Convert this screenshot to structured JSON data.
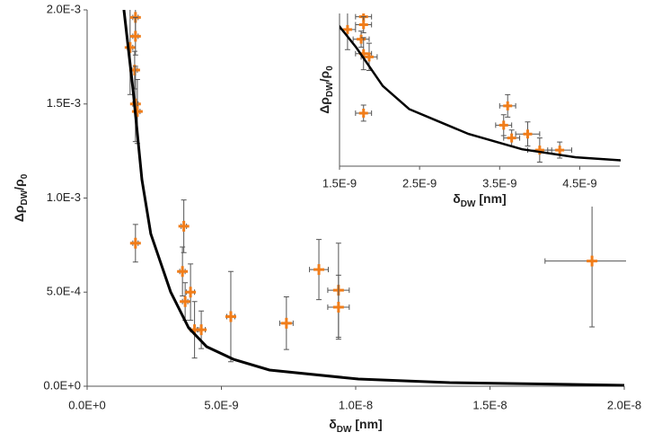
{
  "chart_data": [
    {
      "type": "scatter",
      "xlabel": [
        "δ",
        "DW",
        " [nm]"
      ],
      "ylabel": [
        "Δρ",
        "DW",
        "/ρ",
        "0"
      ],
      "xlim": [
        0,
        2e-08
      ],
      "ylim": [
        0,
        0.002
      ],
      "xticks": [
        {
          "value": 0,
          "label": "0.0E+0"
        },
        {
          "value": 5e-09,
          "label": "5.0E-9"
        },
        {
          "value": 1e-08,
          "label": "1.0E-8"
        },
        {
          "value": 1.5e-08,
          "label": "1.5E-8"
        },
        {
          "value": 2e-08,
          "label": "2.0E-8"
        }
      ],
      "yticks": [
        {
          "value": 0,
          "label": "0.0E+0"
        },
        {
          "value": 0.0005,
          "label": "5.0E-4"
        },
        {
          "value": 0.001,
          "label": "1.0E-3"
        },
        {
          "value": 0.0015,
          "label": "1.5E-3"
        },
        {
          "value": 0.002,
          "label": "2.0E-3"
        }
      ],
      "series": [
        {
          "type": "scatter",
          "color": "#f07d1a",
          "errcolor": "#555555",
          "x": [
            1.6e-09,
            1.8e-09,
            1.8e-09,
            1.77e-09,
            1.8e-09,
            1.87e-09,
            1.8e-09,
            3.6e-09,
            3.55e-09,
            3.65e-09,
            3.85e-09,
            4e-09,
            4.25e-09,
            5.35e-09,
            7.42e-09,
            8.63e-09,
            9.36e-09,
            9.36e-09,
            1.88e-08
          ],
          "values": [
            0.0018,
            0.00196,
            0.00186,
            0.00168,
            0.0015,
            0.00146,
            0.00076,
            0.00085,
            0.00061,
            0.00045,
            0.0005,
            0.0003,
            0.0003,
            0.00037,
            0.000335,
            0.00062,
            0.00051,
            0.00042,
            0.000665
          ],
          "yerr": [
            0.00025,
            0.0001,
            0.0001,
            0.0001,
            0.0002,
            0.00017,
            0.0001,
            0.00014,
            0.00013,
            0.0001,
            0.00015,
            0.00015,
            0.0001,
            0.00024,
            0.00014,
            0.00016,
            0.00025,
            0.00017,
            0.00035
          ],
          "xerr": [
            1e-10,
            1e-10,
            1e-10,
            1e-10,
            1e-10,
            1e-10,
            1e-10,
            1e-10,
            1e-10,
            1e-10,
            1.5e-10,
            1.5e-10,
            1.5e-10,
            1.5e-10,
            2.5e-10,
            3.5e-10,
            4e-10,
            4e-10,
            1.75e-09
          ]
        },
        {
          "type": "line",
          "color": "#000000",
          "x": [
            1.37e-09,
            1.71e-09,
            2.04e-09,
            2.37e-09,
            2.71e-09,
            3.11e-09,
            3.78e-09,
            4.45e-09,
            5.45e-09,
            6.79e-09,
            1.01e-08,
            1.35e-08,
            2e-08
          ],
          "values": [
            0.002,
            0.001575,
            0.001098,
            0.00081,
            0.000668,
            0.000501,
            0.00031,
            0.00021,
            0.000143,
            8.6e-05,
            3.8e-05,
            1.9e-05,
            5e-06
          ]
        }
      ]
    },
    {
      "type": "inset",
      "xlabel": [
        "δ",
        "DW",
        " [nm]"
      ],
      "ylabel": [
        "Δρ",
        "DW",
        "/ρ",
        "0"
      ],
      "xlim": [
        1.5e-09,
        5e-09
      ],
      "ylim": [
        0.0001,
        0.002
      ],
      "xticks": [
        {
          "value": 1.5e-09,
          "label": "1.5E-9"
        },
        {
          "value": 2.5e-09,
          "label": "2.5E-9"
        },
        {
          "value": 3.5e-09,
          "label": "3.5E-9"
        },
        {
          "value": 4.5e-09,
          "label": "4.5E-9"
        }
      ]
    }
  ]
}
